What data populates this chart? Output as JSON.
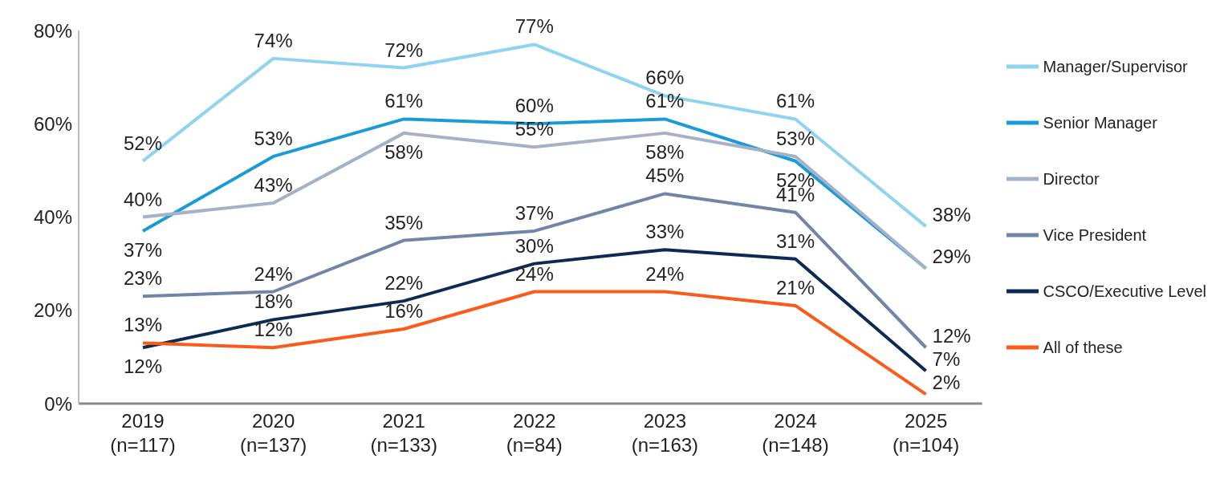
{
  "chart_data": {
    "type": "line",
    "categories": [
      "2019 (n=117)",
      "2020 (n=137)",
      "2021 (n=133)",
      "2022 (n=84)",
      "2023 (n=163)",
      "2024 (n=148)",
      "2025 (n=104)"
    ],
    "ylim": [
      0,
      80
    ],
    "yticks": [
      {
        "value": 0,
        "label": "0%"
      },
      {
        "value": 20,
        "label": "20%"
      },
      {
        "value": 40,
        "label": "40%"
      },
      {
        "value": 60,
        "label": "60%"
      },
      {
        "value": 80,
        "label": "80%"
      }
    ],
    "grid": false,
    "legend": "right",
    "marker": "none",
    "line_style": "solid",
    "series": [
      {
        "name": "Manager/Supervisor",
        "color": "#8fd3ef",
        "values": [
          52,
          74,
          72,
          77,
          66,
          61,
          38
        ],
        "value_labels": [
          "52%",
          "74%",
          "72%",
          "77%",
          "66%",
          "61%",
          "38%"
        ]
      },
      {
        "name": "Senior Manager",
        "color": "#1a9bd7",
        "values": [
          37,
          53,
          61,
          60,
          61,
          52,
          29
        ],
        "value_labels": [
          "37%",
          "53%",
          "61%",
          "60%",
          "61%",
          "52%",
          null
        ]
      },
      {
        "name": "Director",
        "color": "#a5b1c6",
        "values": [
          40,
          43,
          58,
          55,
          58,
          53,
          29
        ],
        "value_labels": [
          "40%",
          "43%",
          "58%",
          "55%",
          "58%",
          "53%",
          "29%"
        ]
      },
      {
        "name": "Vice President",
        "color": "#7185a6",
        "values": [
          23,
          24,
          35,
          37,
          45,
          41,
          12
        ],
        "value_labels": [
          "23%",
          "24%",
          "35%",
          "37%",
          "45%",
          "41%",
          "12%"
        ]
      },
      {
        "name": "CSCO/Executive Level",
        "color": "#0f2a52",
        "values": [
          12,
          18,
          22,
          30,
          33,
          31,
          7
        ],
        "value_labels": [
          "12%",
          "18%",
          "22%",
          "30%",
          "33%",
          "31%",
          "7%"
        ]
      },
      {
        "name": "All of these",
        "color": "#fa5a1a",
        "values": [
          13,
          12,
          16,
          24,
          24,
          21,
          2
        ],
        "value_labels": [
          "13%",
          "12%",
          "16%",
          "24%",
          "24%",
          "21%",
          "2%"
        ]
      }
    ]
  }
}
